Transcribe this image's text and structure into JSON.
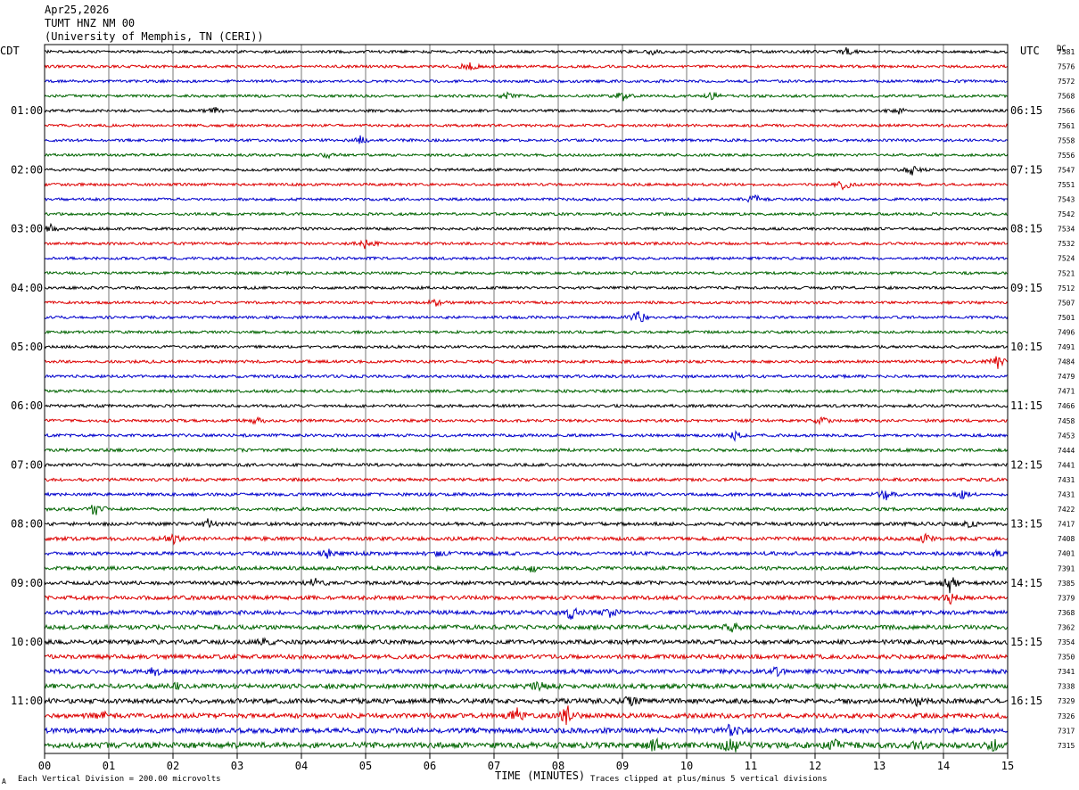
{
  "header": {
    "date": "Apr25,2026",
    "station": "TUMT HNZ NM 00",
    "network": "(University of Memphis, TN (CERI))"
  },
  "labels": {
    "left_timezone": "CDT",
    "right_timezone": "UTC",
    "dc_header": "DC",
    "xlabel": "TIME (MINUTES)",
    "scale_note": "Each Vertical Division =  200.00 microvolts",
    "clip_note": "Traces clipped at plus/minus 5 vertical divisions",
    "corner_mark": "A"
  },
  "colors": {
    "trace_cycle": [
      "#000000",
      "#dd0000",
      "#0000cc",
      "#006400"
    ],
    "grid": "#777777",
    "frame": "#000000"
  },
  "chart_data": {
    "type": "line",
    "title": "TUMT HNZ NM 00",
    "xlabel": "TIME (MINUTES)",
    "xlim": [
      0,
      15
    ],
    "x_ticks": [
      "00",
      "01",
      "02",
      "03",
      "04",
      "05",
      "06",
      "07",
      "08",
      "09",
      "10",
      "11",
      "12",
      "13",
      "14",
      "15"
    ],
    "trace_count": 48,
    "left_hour_labels": [
      {
        "row": 4,
        "label": "01:00"
      },
      {
        "row": 8,
        "label": "02:00"
      },
      {
        "row": 12,
        "label": "03:00"
      },
      {
        "row": 16,
        "label": "04:00"
      },
      {
        "row": 20,
        "label": "05:00"
      },
      {
        "row": 24,
        "label": "06:00"
      },
      {
        "row": 28,
        "label": "07:00"
      },
      {
        "row": 32,
        "label": "08:00"
      },
      {
        "row": 36,
        "label": "09:00"
      },
      {
        "row": 40,
        "label": "10:00"
      },
      {
        "row": 44,
        "label": "11:00"
      }
    ],
    "right_hour_labels": [
      {
        "row": 4,
        "label": "06:15"
      },
      {
        "row": 8,
        "label": "07:15"
      },
      {
        "row": 12,
        "label": "08:15"
      },
      {
        "row": 16,
        "label": "09:15"
      },
      {
        "row": 20,
        "label": "10:15"
      },
      {
        "row": 24,
        "label": "11:15"
      },
      {
        "row": 28,
        "label": "12:15"
      },
      {
        "row": 32,
        "label": "13:15"
      },
      {
        "row": 36,
        "label": "14:15"
      },
      {
        "row": 40,
        "label": "15:15"
      },
      {
        "row": 44,
        "label": "16:15"
      }
    ],
    "dc_offsets": [
      "7581",
      "7576",
      "7572",
      "7568",
      "7566",
      "7561",
      "7558",
      "7556",
      "7547",
      "7551",
      "7543",
      "7542",
      "7534",
      "7532",
      "7524",
      "7521",
      "7512",
      "7507",
      "7501",
      "7496",
      "7491",
      "7484",
      "7479",
      "7471",
      "7466",
      "7458",
      "7453",
      "7444",
      "7441",
      "7431",
      "7431",
      "7422",
      "7417",
      "7408",
      "7401",
      "7391",
      "7385",
      "7379",
      "7368",
      "7362",
      "7354",
      "7350",
      "7341",
      "7338",
      "7329",
      "7326",
      "7317",
      "7315"
    ],
    "noise_amplitude": [
      1.5,
      1.5,
      1.5,
      1.5,
      1.5,
      1.5,
      1.5,
      1.5,
      1.5,
      1.5,
      1.5,
      1.5,
      1.5,
      1.5,
      1.5,
      1.5,
      1.5,
      1.5,
      1.5,
      1.5,
      1.5,
      1.6,
      1.6,
      1.6,
      1.6,
      1.6,
      1.6,
      1.7,
      1.7,
      1.7,
      1.7,
      1.8,
      1.9,
      2.0,
      2.0,
      2.0,
      2.1,
      2.2,
      2.3,
      2.4,
      2.4,
      2.4,
      2.4,
      2.6,
      2.7,
      2.7,
      2.8,
      3.2
    ],
    "events": [
      {
        "row": 0,
        "minute": 9.5,
        "amp": 4
      },
      {
        "row": 0,
        "minute": 12.5,
        "amp": 5
      },
      {
        "row": 1,
        "minute": 6.6,
        "amp": 7
      },
      {
        "row": 3,
        "minute": 9.0,
        "amp": 6
      },
      {
        "row": 3,
        "minute": 10.4,
        "amp": 4
      },
      {
        "row": 3,
        "minute": 7.2,
        "amp": 3
      },
      {
        "row": 4,
        "minute": 2.65,
        "amp": 4
      },
      {
        "row": 4,
        "minute": 13.3,
        "amp": 4
      },
      {
        "row": 6,
        "minute": 4.9,
        "amp": 6
      },
      {
        "row": 7,
        "minute": 4.4,
        "amp": 3
      },
      {
        "row": 8,
        "minute": 13.5,
        "amp": 7
      },
      {
        "row": 9,
        "minute": 12.45,
        "amp": 6
      },
      {
        "row": 10,
        "minute": 11.05,
        "amp": 6
      },
      {
        "row": 12,
        "minute": 0.1,
        "amp": 7
      },
      {
        "row": 13,
        "minute": 5.0,
        "amp": 7
      },
      {
        "row": 17,
        "minute": 6.1,
        "amp": 4
      },
      {
        "row": 18,
        "minute": 9.25,
        "amp": 9
      },
      {
        "row": 21,
        "minute": 14.85,
        "amp": 7
      },
      {
        "row": 25,
        "minute": 3.3,
        "amp": 4
      },
      {
        "row": 25,
        "minute": 12.1,
        "amp": 4
      },
      {
        "row": 26,
        "minute": 10.75,
        "amp": 5
      },
      {
        "row": 30,
        "minute": 13.1,
        "amp": 7
      },
      {
        "row": 30,
        "minute": 14.3,
        "amp": 4
      },
      {
        "row": 31,
        "minute": 0.8,
        "amp": 9
      },
      {
        "row": 32,
        "minute": 2.55,
        "amp": 5
      },
      {
        "row": 32,
        "minute": 14.4,
        "amp": 5
      },
      {
        "row": 33,
        "minute": 2.0,
        "amp": 6
      },
      {
        "row": 33,
        "minute": 13.7,
        "amp": 5
      },
      {
        "row": 34,
        "minute": 4.4,
        "amp": 5
      },
      {
        "row": 34,
        "minute": 6.1,
        "amp": 4
      },
      {
        "row": 34,
        "minute": 14.8,
        "amp": 4
      },
      {
        "row": 35,
        "minute": 7.6,
        "amp": 4
      },
      {
        "row": 36,
        "minute": 4.2,
        "amp": 6
      },
      {
        "row": 36,
        "minute": 14.1,
        "amp": 10
      },
      {
        "row": 37,
        "minute": 14.1,
        "amp": 6
      },
      {
        "row": 38,
        "minute": 8.2,
        "amp": 7
      },
      {
        "row": 38,
        "minute": 8.8,
        "amp": 4
      },
      {
        "row": 39,
        "minute": 10.7,
        "amp": 5
      },
      {
        "row": 40,
        "minute": 3.4,
        "amp": 4
      },
      {
        "row": 42,
        "minute": 1.7,
        "amp": 5
      },
      {
        "row": 42,
        "minute": 11.4,
        "amp": 4
      },
      {
        "row": 43,
        "minute": 2.0,
        "amp": 5
      },
      {
        "row": 43,
        "minute": 7.7,
        "amp": 5
      },
      {
        "row": 44,
        "minute": 9.1,
        "amp": 5
      },
      {
        "row": 44,
        "minute": 13.6,
        "amp": 5
      },
      {
        "row": 45,
        "minute": 7.35,
        "amp": 8
      },
      {
        "row": 45,
        "minute": 8.15,
        "amp": 12
      },
      {
        "row": 45,
        "minute": 0.9,
        "amp": 4
      },
      {
        "row": 46,
        "minute": 10.7,
        "amp": 8
      },
      {
        "row": 47,
        "minute": 9.5,
        "amp": 8
      },
      {
        "row": 47,
        "minute": 10.7,
        "amp": 12
      },
      {
        "row": 47,
        "minute": 12.3,
        "amp": 8
      },
      {
        "row": 47,
        "minute": 13.6,
        "amp": 6
      },
      {
        "row": 47,
        "minute": 14.8,
        "amp": 6
      }
    ]
  }
}
